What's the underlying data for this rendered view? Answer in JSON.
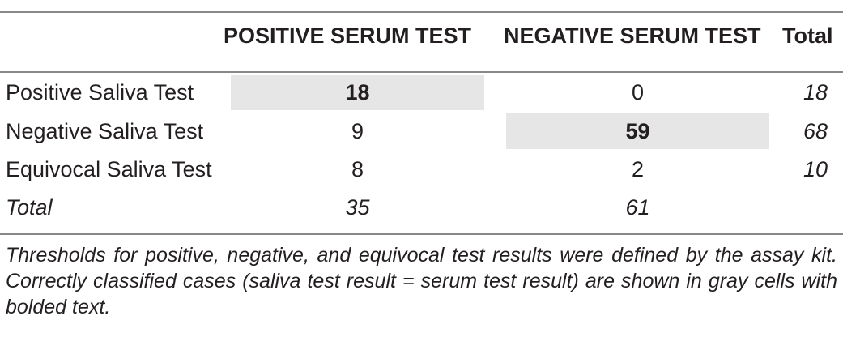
{
  "table": {
    "columns": [
      "POSITIVE SERUM TEST",
      "NEGATIVE SERUM TEST",
      "Total"
    ],
    "rows": [
      {
        "label": "Positive Saliva Test",
        "positive": "18",
        "negative": "0",
        "total": "18"
      },
      {
        "label": "Negative Saliva Test",
        "positive": "9",
        "negative": "59",
        "total": "68"
      },
      {
        "label": "Equivocal Saliva Test",
        "positive": "8",
        "negative": "2",
        "total": "10"
      },
      {
        "label": "Total",
        "positive": "35",
        "negative": "61",
        "total": ""
      }
    ],
    "highlight_color": "#e6e6e6",
    "footnote": "Thresholds for positive, negative, and equivocal test results were defined by the assay kit. Correctly classified cases (saliva test result = serum test result) are shown in gray cells with bolded text."
  }
}
